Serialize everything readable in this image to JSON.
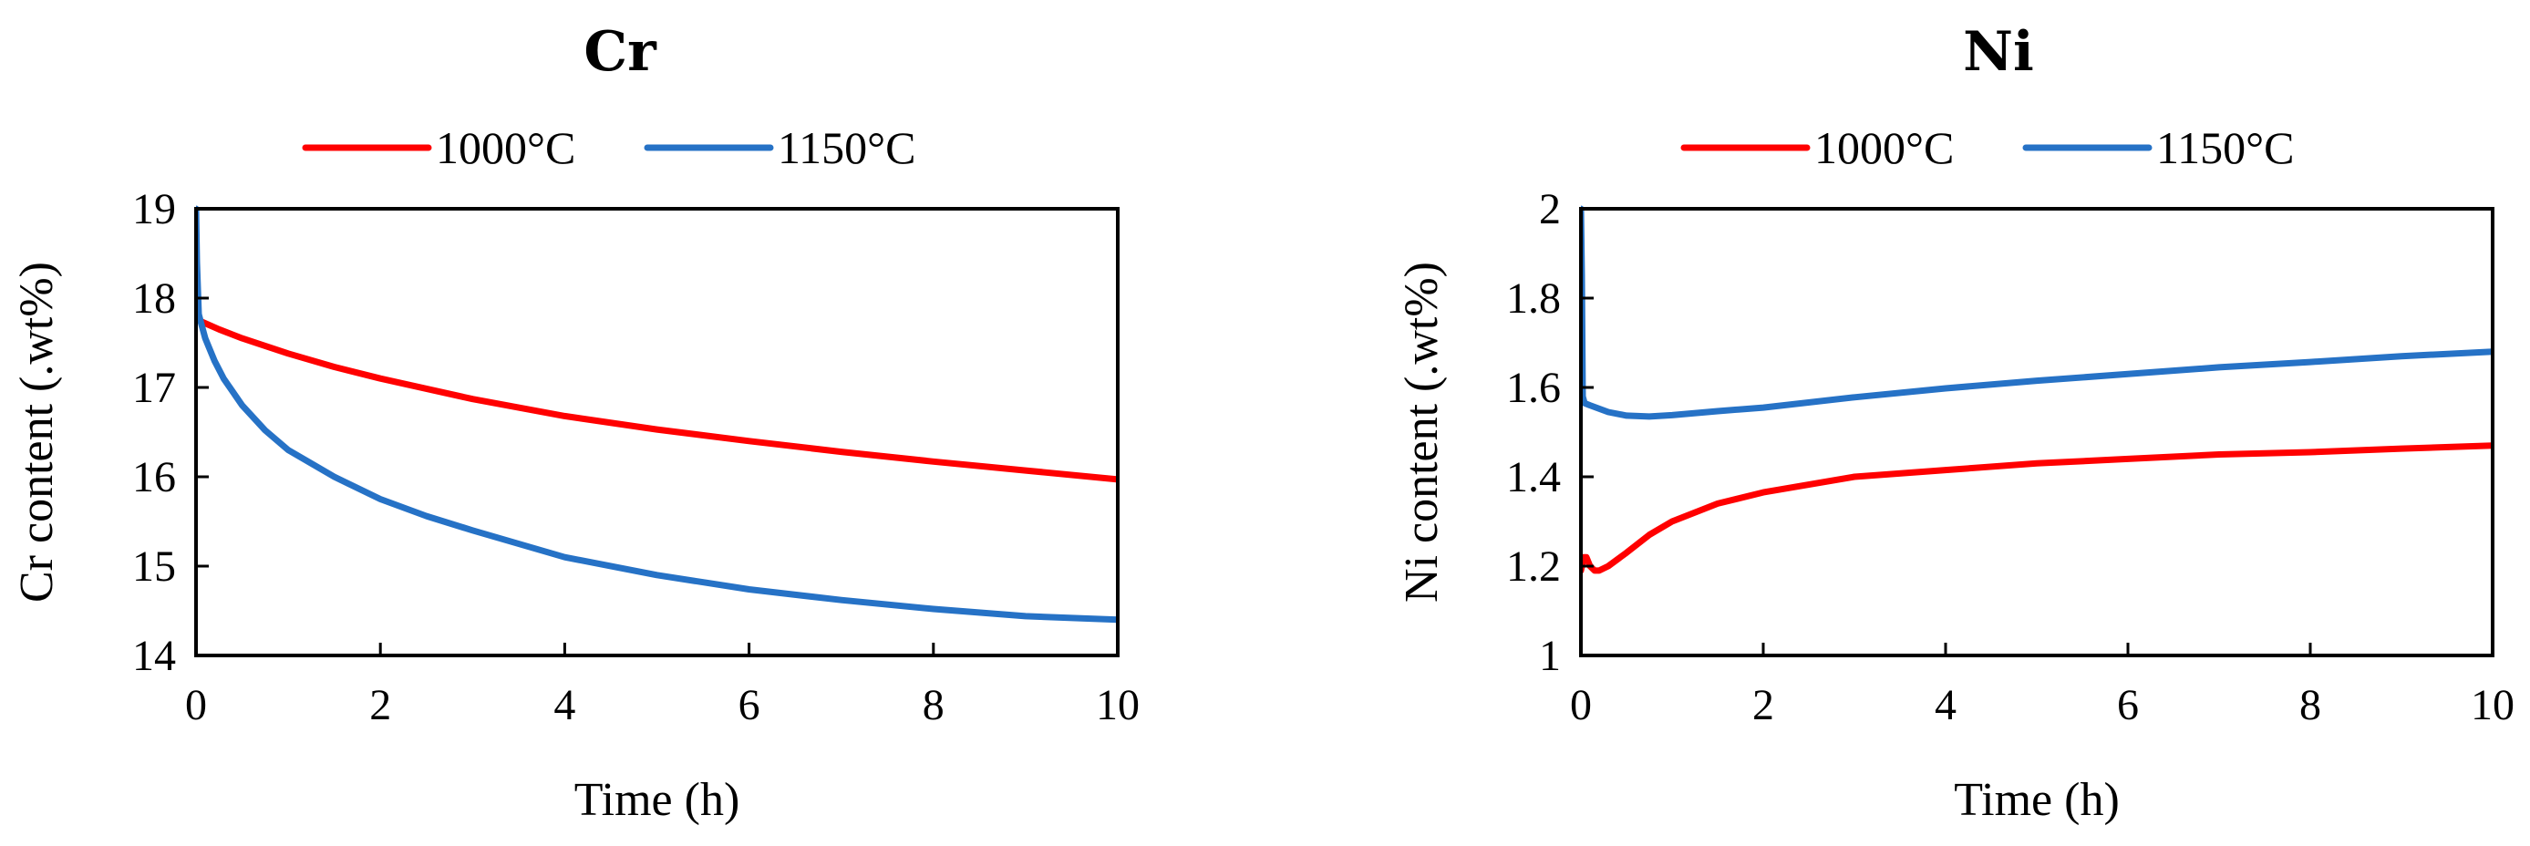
{
  "colors": {
    "red": "#FF0000",
    "blue": "#2672C6",
    "axis": "#000000"
  },
  "chart_data": [
    {
      "type": "line",
      "title": "Cr",
      "xlabel": "Time (h)",
      "ylabel": "Cr content (.wt%)",
      "xlim": [
        0,
        10
      ],
      "ylim": [
        14,
        19
      ],
      "xticks": [
        0,
        2,
        4,
        6,
        8,
        10
      ],
      "yticks": [
        14,
        15,
        16,
        17,
        18,
        19
      ],
      "xtick_labels": [
        "0",
        "2",
        "4",
        "6",
        "8",
        "10"
      ],
      "ytick_labels": [
        "14",
        "15",
        "16",
        "17",
        "18",
        "19"
      ],
      "legend_position": "top-center",
      "series": [
        {
          "name": "1000°C",
          "color": "#FF0000",
          "x": [
            0.03,
            0.25,
            0.5,
            1,
            1.5,
            2,
            3,
            4,
            5,
            6,
            7,
            8,
            9,
            10
          ],
          "y": [
            17.75,
            17.65,
            17.55,
            17.38,
            17.23,
            17.1,
            16.87,
            16.68,
            16.53,
            16.4,
            16.28,
            16.17,
            16.07,
            15.97
          ]
        },
        {
          "name": "1150°C",
          "color": "#2672C6",
          "x": [
            0,
            0.01,
            0.03,
            0.06,
            0.1,
            0.2,
            0.3,
            0.5,
            0.75,
            1,
            1.5,
            2,
            2.5,
            3,
            4,
            5,
            6,
            7,
            8,
            9,
            10
          ],
          "y": [
            19.0,
            18.4,
            17.82,
            17.7,
            17.55,
            17.3,
            17.1,
            16.8,
            16.52,
            16.3,
            16.0,
            15.75,
            15.56,
            15.4,
            15.1,
            14.9,
            14.74,
            14.62,
            14.52,
            14.44,
            14.4
          ]
        }
      ]
    },
    {
      "type": "line",
      "title": "Ni",
      "xlabel": "Time (h)",
      "ylabel": "Ni content (.wt%)",
      "xlim": [
        0,
        10
      ],
      "ylim": [
        1,
        2
      ],
      "xticks": [
        0,
        2,
        4,
        6,
        8,
        10
      ],
      "yticks": [
        1,
        1.2,
        1.4,
        1.6,
        1.8,
        2
      ],
      "xtick_labels": [
        "0",
        "2",
        "4",
        "6",
        "8",
        "10"
      ],
      "ytick_labels": [
        "1",
        "1.2",
        "1.4",
        "1.6",
        "1.8",
        "2"
      ],
      "legend_position": "top-center",
      "series": [
        {
          "name": "1000°C",
          "color": "#FF0000",
          "x": [
            0,
            0.03,
            0.06,
            0.1,
            0.15,
            0.2,
            0.3,
            0.5,
            0.75,
            1,
            1.5,
            2,
            3,
            4,
            5,
            6,
            7,
            8,
            9,
            10
          ],
          "y": [
            1.19,
            1.22,
            1.22,
            1.2,
            1.19,
            1.19,
            1.2,
            1.23,
            1.27,
            1.3,
            1.34,
            1.365,
            1.4,
            1.415,
            1.43,
            1.44,
            1.45,
            1.455,
            1.463,
            1.47
          ]
        },
        {
          "name": "1150°C",
          "color": "#2672C6",
          "x": [
            0,
            0.01,
            0.02,
            0.04,
            0.1,
            0.3,
            0.5,
            0.75,
            1,
            1.5,
            2,
            3,
            4,
            5,
            6,
            7,
            8,
            9,
            10
          ],
          "y": [
            2.0,
            1.85,
            1.58,
            1.565,
            1.56,
            1.545,
            1.537,
            1.535,
            1.538,
            1.547,
            1.555,
            1.578,
            1.598,
            1.615,
            1.63,
            1.645,
            1.657,
            1.67,
            1.68
          ]
        }
      ]
    }
  ]
}
